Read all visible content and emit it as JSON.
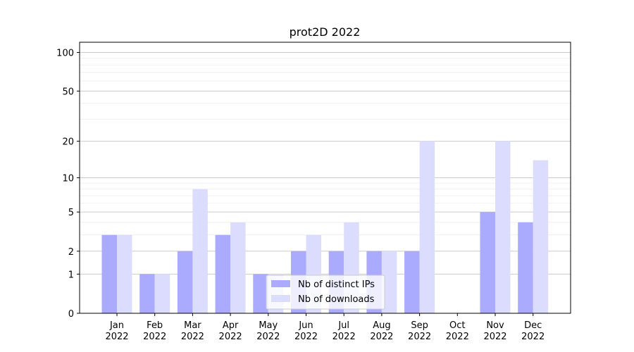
{
  "chart_data": {
    "type": "bar",
    "title": "prot2D 2022",
    "xlabel": "",
    "ylabel": "",
    "y_scale": "symlog",
    "ylim": [
      0,
      120
    ],
    "yticks": [
      0,
      1,
      2,
      5,
      10,
      20,
      50,
      100
    ],
    "categories": [
      [
        "Jan",
        "2022"
      ],
      [
        "Feb",
        "2022"
      ],
      [
        "Mar",
        "2022"
      ],
      [
        "Apr",
        "2022"
      ],
      [
        "May",
        "2022"
      ],
      [
        "Jun",
        "2022"
      ],
      [
        "Jul",
        "2022"
      ],
      [
        "Aug",
        "2022"
      ],
      [
        "Sep",
        "2022"
      ],
      [
        "Oct",
        "2022"
      ],
      [
        "Nov",
        "2022"
      ],
      [
        "Dec",
        "2022"
      ]
    ],
    "series": [
      {
        "name": "Nb of distinct IPs",
        "color": "#aaaaff",
        "values": [
          3,
          1,
          2,
          3,
          1,
          2,
          2,
          2,
          2,
          0,
          5,
          4
        ]
      },
      {
        "name": "Nb of downloads",
        "color": "#dcdcff",
        "values": [
          3,
          1,
          8,
          4,
          1,
          3,
          4,
          2,
          20,
          0,
          20,
          14
        ]
      }
    ],
    "grid": true,
    "legend_position": "lower center"
  }
}
